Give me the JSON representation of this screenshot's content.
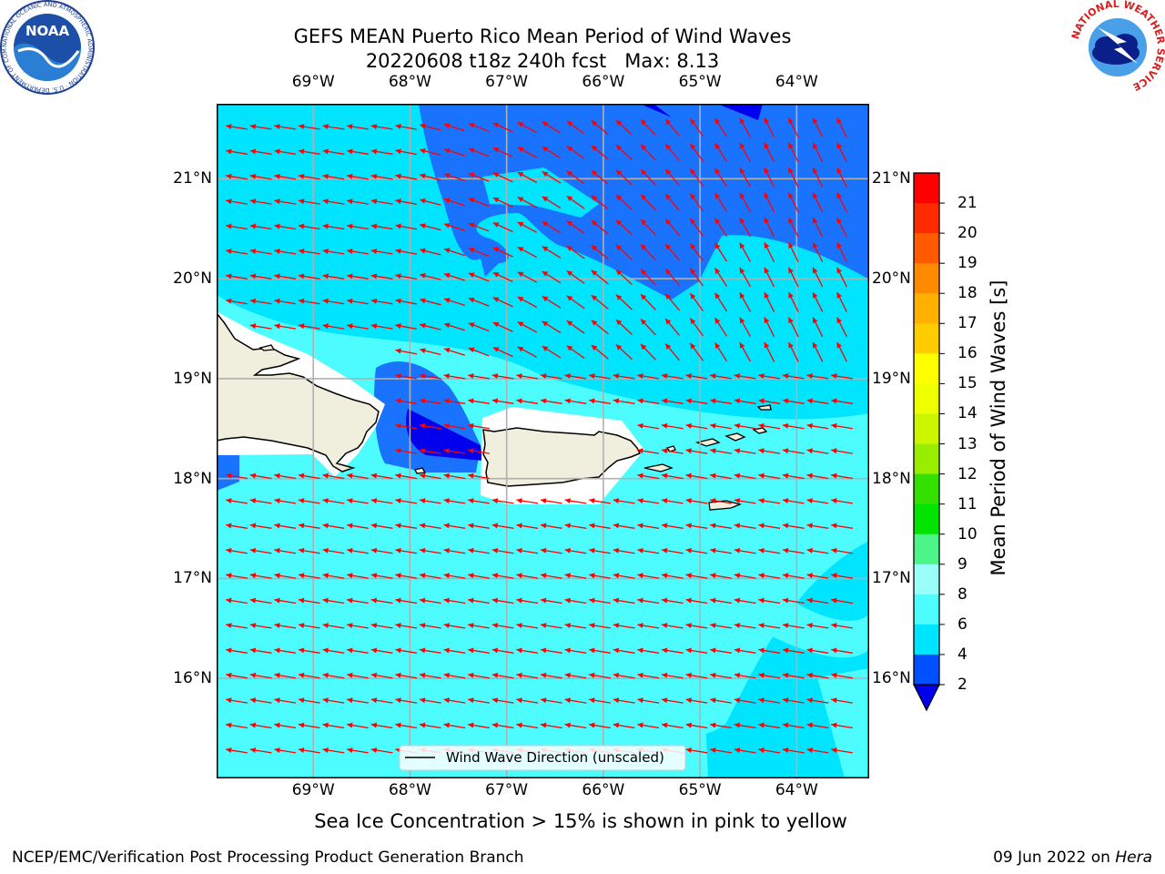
{
  "header": {
    "title_line1": "GEFS MEAN Puerto Rico Mean Period of Wind Waves",
    "date_fcst": "20220608 t18z 240h fcst",
    "max_label": "Max: 8.13"
  },
  "logos": {
    "noaa_text": "NOAA",
    "noaa_ring_text": "NATIONAL OCEANIC AND ATMOSPHERIC ADMINISTRATION · U.S. DEPARTMENT OF COMMERCE",
    "nws_ring_text": "NATIONAL WEATHER SERVICE"
  },
  "map": {
    "lon_ticks": [
      "69°W",
      "68°W",
      "67°W",
      "66°W",
      "65°W",
      "64°W"
    ],
    "lat_ticks": [
      "21°N",
      "20°N",
      "19°N",
      "18°N",
      "17°N",
      "16°N"
    ],
    "lon_range": [
      -70.0,
      -63.25
    ],
    "lat_range": [
      15.0,
      21.75
    ],
    "grid": true,
    "arrow_color": "#ff0000",
    "legend_label": "Wind Wave Direction (unscaled)",
    "legend_placement": "bottom-center"
  },
  "colorbar": {
    "label": "Mean Period of Wind Waves [s]",
    "ticks": [
      "2",
      "4",
      "6",
      "8",
      "9",
      "10",
      "11",
      "12",
      "13",
      "14",
      "15",
      "16",
      "17",
      "18",
      "19",
      "20",
      "21"
    ],
    "colors": [
      "#0050ff",
      "#00e5ff",
      "#4dfcff",
      "#99fff8",
      "#4cf58a",
      "#00e400",
      "#33e000",
      "#99ee00",
      "#ccf500",
      "#eeff00",
      "#ffff00",
      "#ffcc00",
      "#ffb000",
      "#ff8a00",
      "#ff5a00",
      "#ff2a00",
      "#ff0000"
    ],
    "under_color": "#0000ee",
    "extend": "min"
  },
  "notes": {
    "ice_note": "Sea Ice Concentration > 15% is shown in pink to yellow"
  },
  "footer": {
    "left": "NCEP/EMC/Verification Post Processing Product Generation Branch",
    "date": "09 Jun 2022 on",
    "host": "Hera"
  }
}
